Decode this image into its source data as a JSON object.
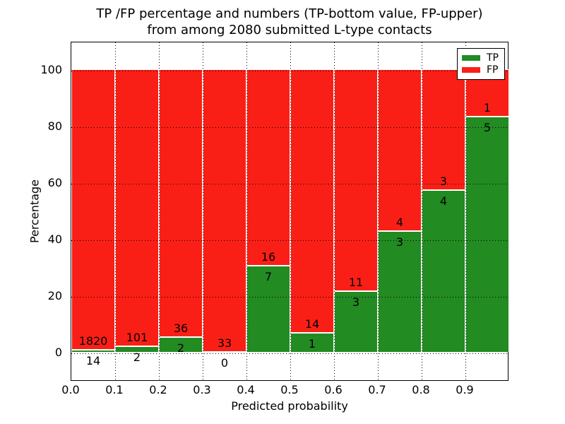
{
  "chart_data": {
    "type": "bar",
    "stacked": true,
    "title": "TP /FP percentage and numbers (TP-bottom value, FP-upper)\nfrom among 2080 submitted L-type contacts",
    "title_line1": "TP /FP percentage and numbers (TP-bottom value, FP-upper)",
    "title_line2": "from among 2080 submitted L-type contacts",
    "xlabel": "Predicted probability",
    "ylabel": "Percentage",
    "total_contacts": 2080,
    "bin_edges": [
      0.0,
      0.1,
      0.2,
      0.3,
      0.4,
      0.5,
      0.6,
      0.7,
      0.8,
      0.9,
      1.0
    ],
    "xticklabels": [
      "0.0",
      "0.1",
      "0.2",
      "0.3",
      "0.4",
      "0.5",
      "0.6",
      "0.7",
      "0.8",
      "0.9"
    ],
    "yticks": [
      0,
      20,
      40,
      60,
      80,
      100
    ],
    "yticklabels": [
      "0",
      "20",
      "40",
      "60",
      "80",
      "100"
    ],
    "xlim": [
      0.0,
      1.0
    ],
    "ylim": [
      -10,
      110
    ],
    "grid": "dotted",
    "legend_position": "upper right",
    "bar_edge_color": "#ffffff",
    "series": [
      {
        "name": "TP",
        "color": "#228b22",
        "counts": [
          14,
          2,
          2,
          0,
          7,
          1,
          3,
          3,
          4,
          5
        ],
        "percent": [
          0.76,
          1.94,
          5.26,
          0.0,
          30.43,
          6.67,
          21.43,
          42.86,
          57.14,
          83.33
        ]
      },
      {
        "name": "FP",
        "color": "#fa1f16",
        "counts": [
          1820,
          101,
          36,
          33,
          16,
          14,
          11,
          4,
          3,
          1
        ],
        "percent": [
          99.24,
          98.06,
          94.74,
          100.0,
          69.57,
          93.33,
          78.57,
          57.14,
          42.86,
          16.67
        ]
      }
    ]
  },
  "colors": {
    "tp": "#228b22",
    "fp": "#fa1f16",
    "frame": "#000000",
    "grid": "#000000",
    "background": "#ffffff"
  }
}
